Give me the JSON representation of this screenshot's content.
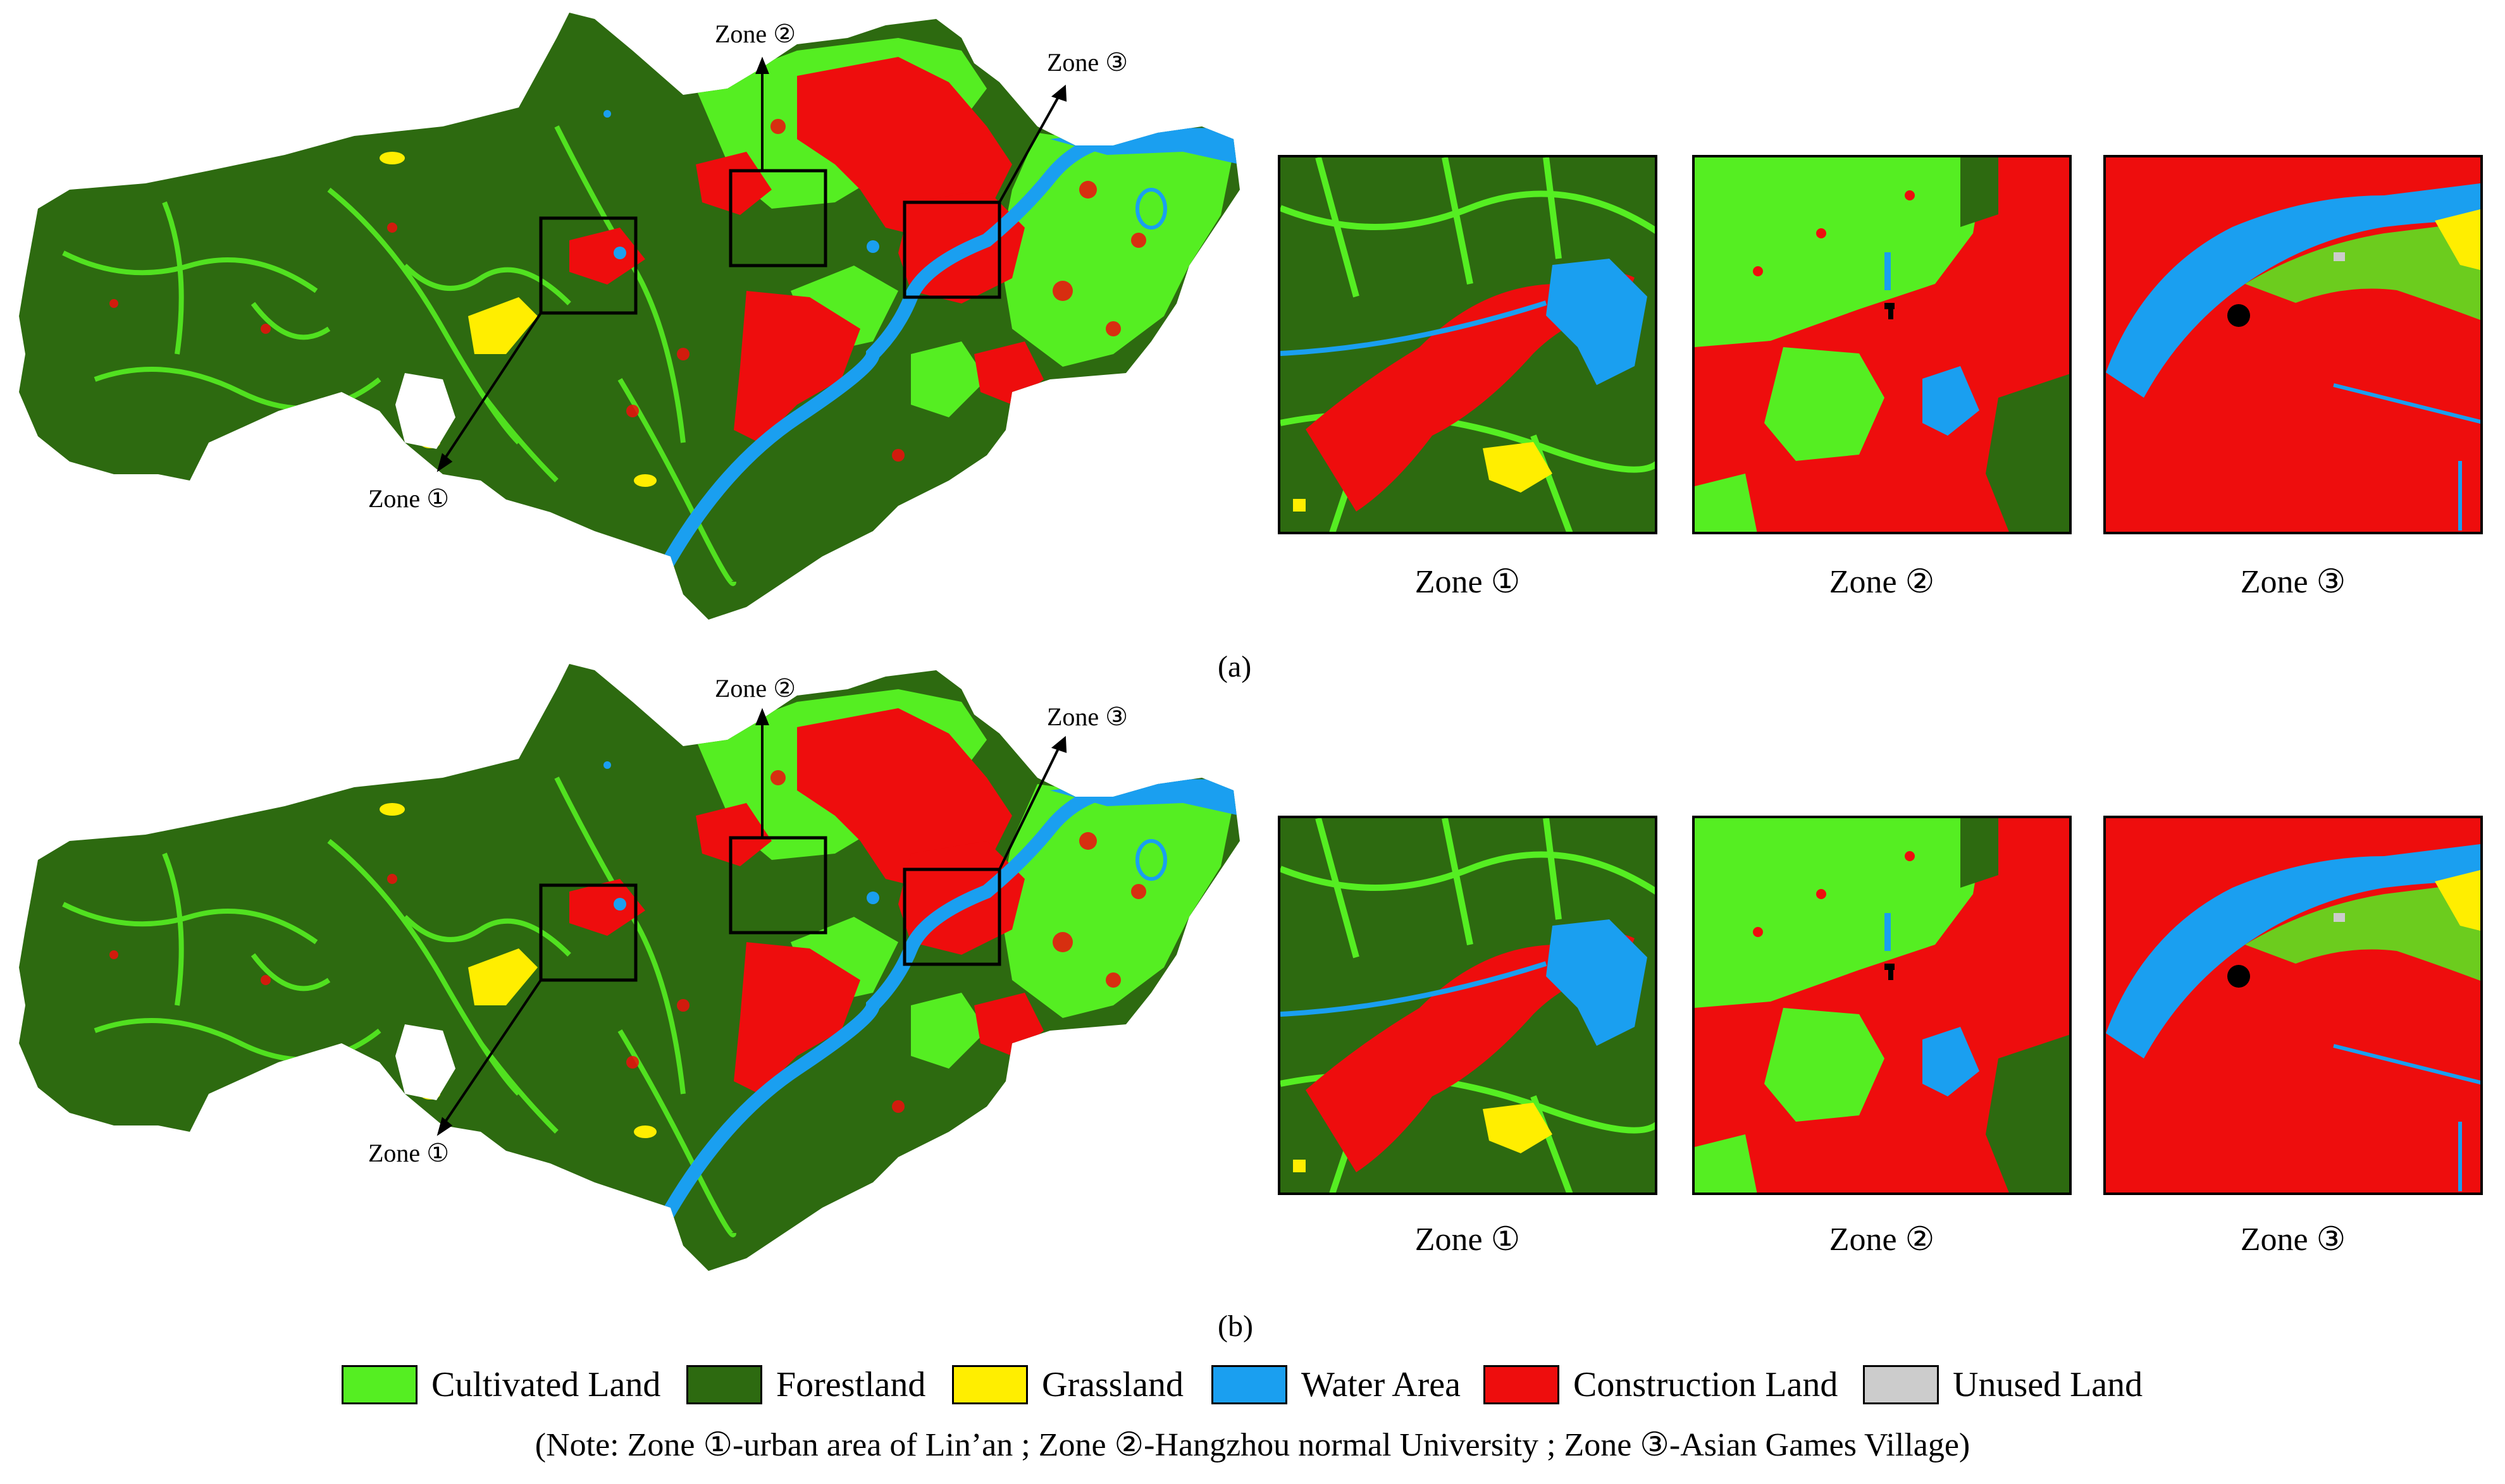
{
  "panels": [
    {
      "tag": "(a)",
      "zone_labels": [
        "Zone ①",
        "Zone ②",
        "Zone ③"
      ],
      "inset_captions": [
        "Zone ①",
        "Zone ②",
        "Zone ③"
      ]
    },
    {
      "tag": "(b)",
      "zone_labels": [
        "Zone ①",
        "Zone ②",
        "Zone ③"
      ],
      "inset_captions": [
        "Zone ①",
        "Zone ②",
        "Zone ③"
      ]
    }
  ],
  "legend": [
    {
      "label": "Cultivated Land",
      "color": "#55ee22"
    },
    {
      "label": "Forestland",
      "color": "#2d6a10"
    },
    {
      "label": "Grassland",
      "color": "#ffee00"
    },
    {
      "label": "Water Area",
      "color": "#1a9ff0"
    },
    {
      "label": "Construction Land",
      "color": "#ee0d0d"
    },
    {
      "label": "Unused Land",
      "color": "#cccccc"
    }
  ],
  "note": "(Note: Zone ①-urban area of Lin’an ;  Zone ②-Hangzhou normal University ;  Zone ③-Asian Games Village)"
}
